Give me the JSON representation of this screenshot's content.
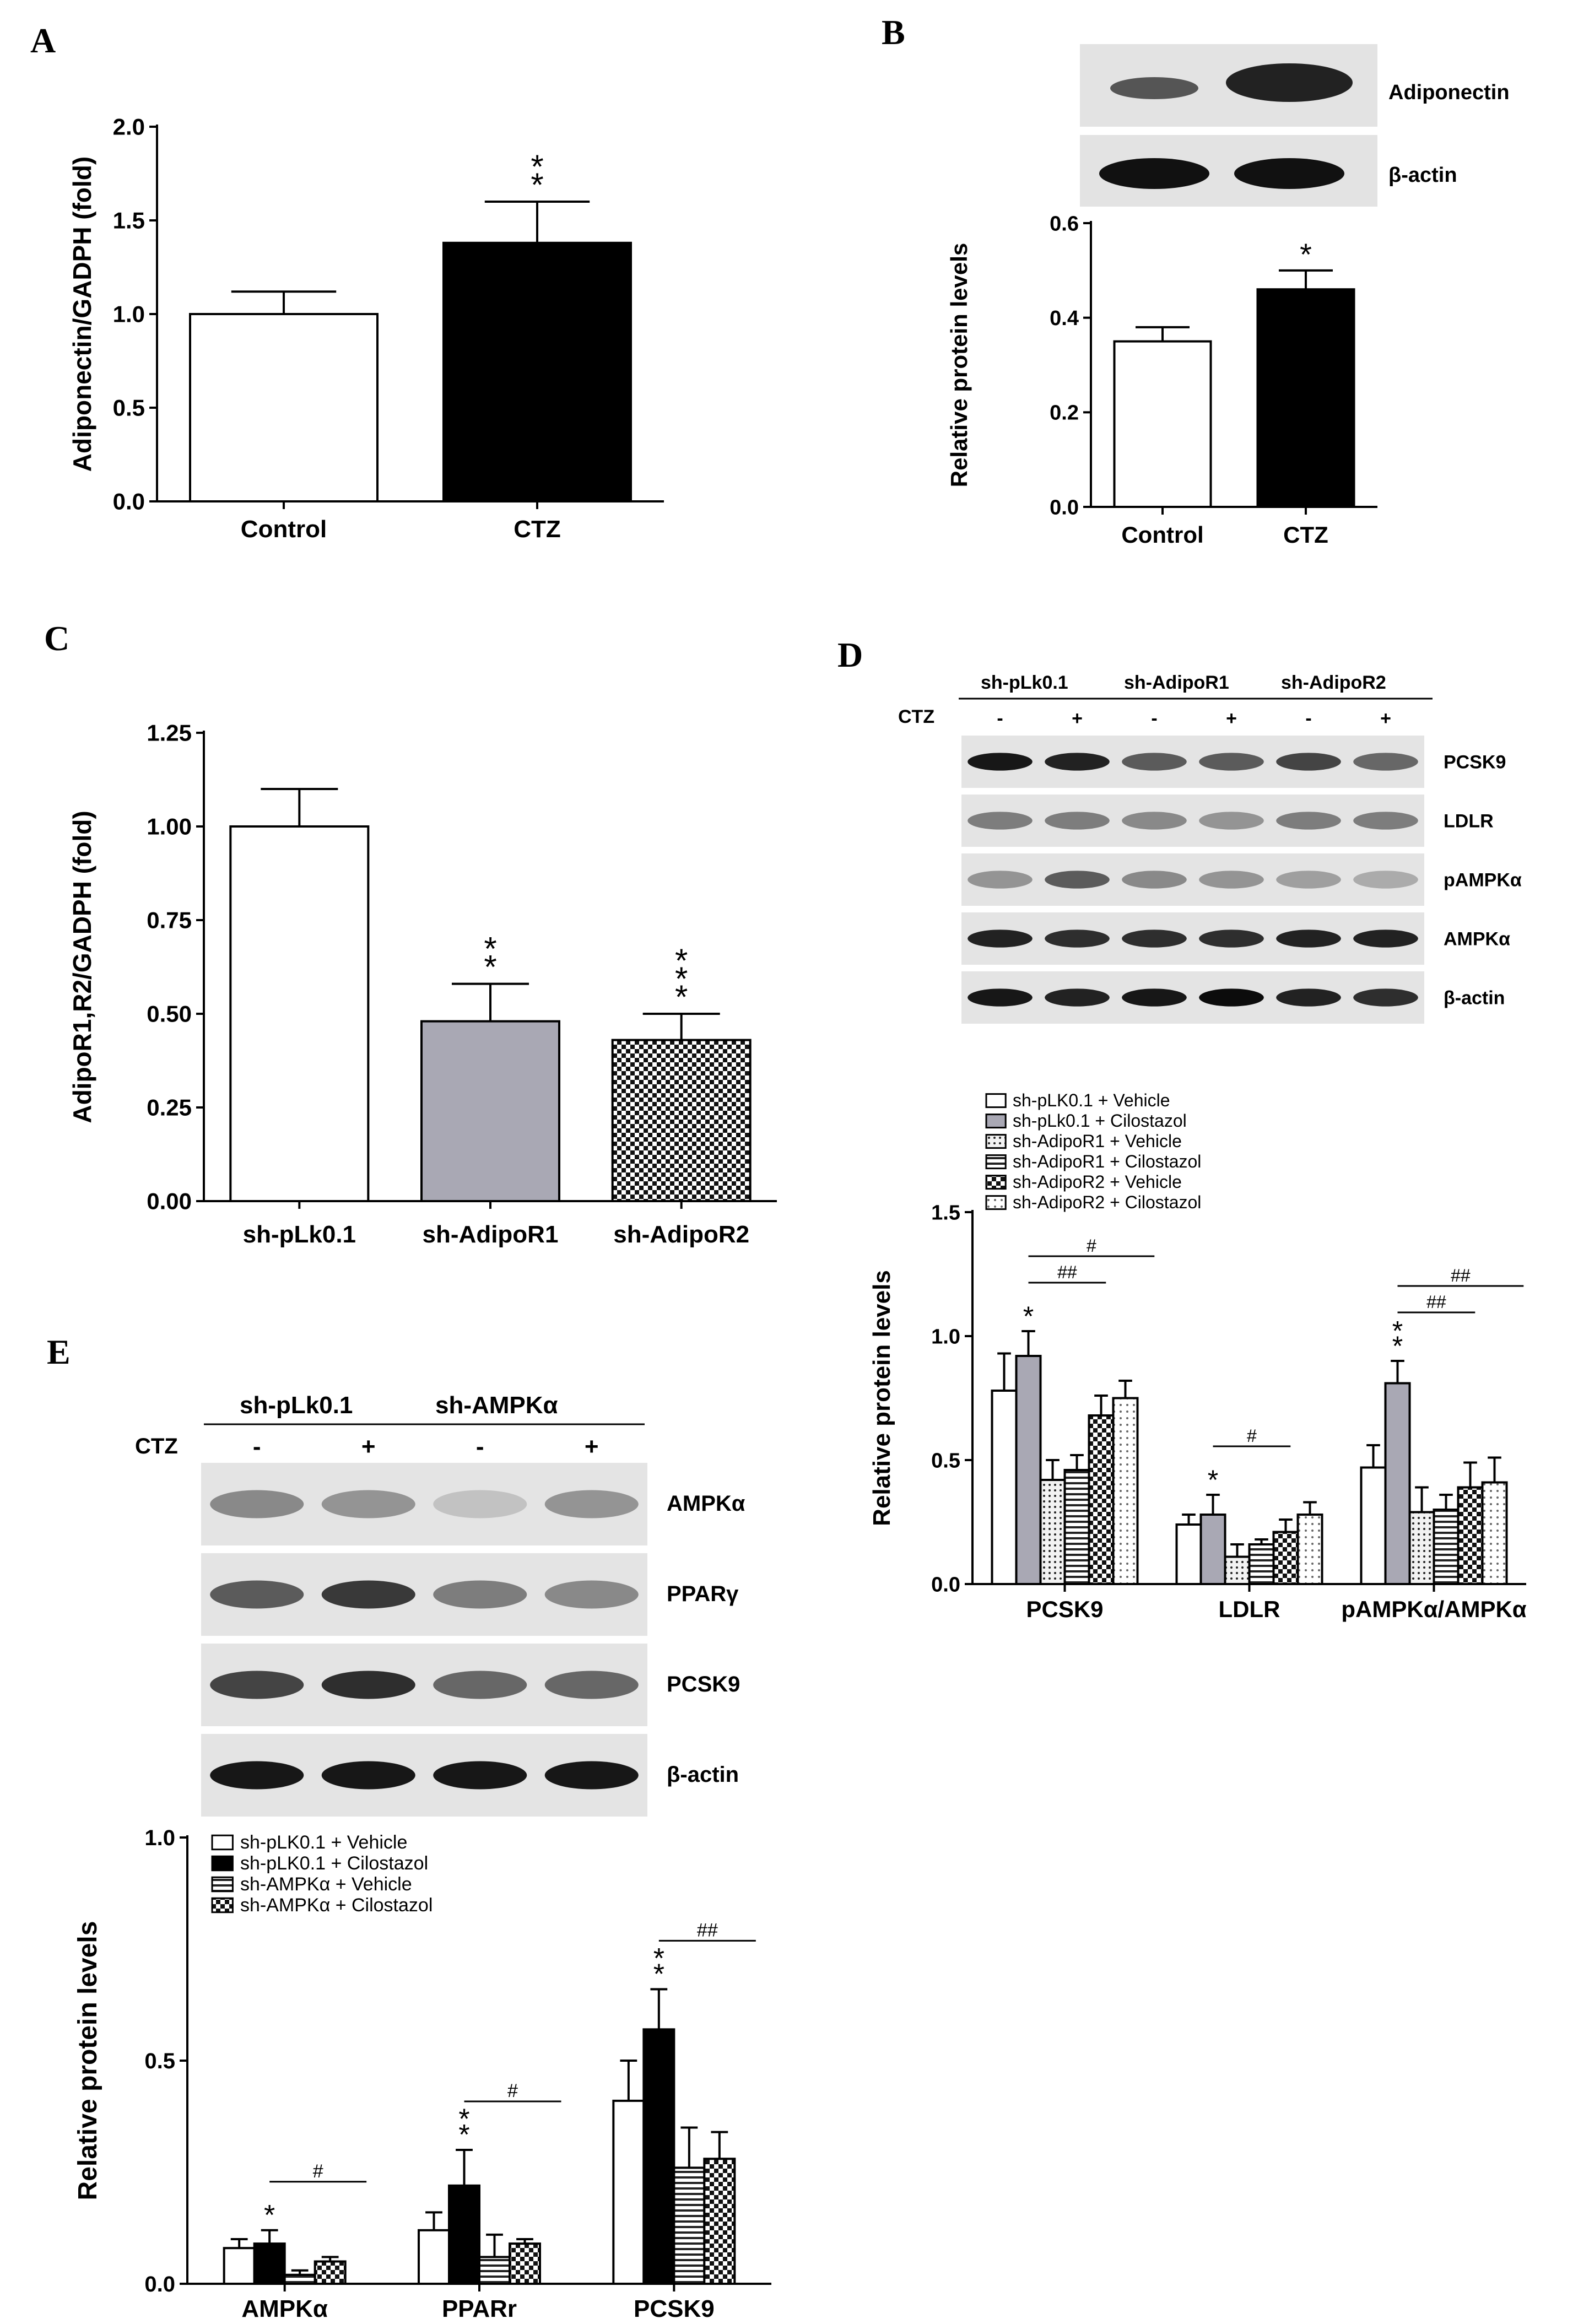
{
  "panels": {
    "A": {
      "label": "A"
    },
    "B": {
      "label": "B",
      "blot_labels": [
        "Adiponectin",
        "β-actin"
      ]
    },
    "C": {
      "label": "C"
    },
    "D": {
      "label": "D",
      "groups": [
        "sh-pLk0.1",
        "sh-AdipoR1",
        "sh-AdipoR2"
      ],
      "ctz_label": "CTZ",
      "lanes": [
        "-",
        "+",
        "-",
        "+",
        "-",
        "+"
      ],
      "blot_labels": [
        "PCSK9",
        "LDLR",
        "pAMPKα",
        "AMPKα",
        "β-actin"
      ]
    },
    "E": {
      "label": "E",
      "groups": [
        "sh-pLk0.1",
        "sh-AMPKα"
      ],
      "ctz_label": "CTZ",
      "lanes": [
        "-",
        "+",
        "-",
        "+"
      ],
      "blot_labels": [
        "AMPKα",
        "PPARγ",
        "PCSK9",
        "β-actin"
      ]
    }
  },
  "colors": {
    "black": "#000000",
    "grey": "#a9a8b4",
    "white": "#ffffff"
  },
  "chart_data": [
    {
      "id": "A",
      "type": "bar",
      "categories": [
        "Control",
        "CTZ"
      ],
      "values": [
        1.0,
        1.38
      ],
      "errors": [
        0.12,
        0.22
      ],
      "fills": [
        "white",
        "black"
      ],
      "significance": [
        "",
        "**"
      ],
      "title": "",
      "xlabel": "",
      "ylabel": "Adiponectin/GADPH (fold)",
      "ylim": [
        0,
        2.0
      ],
      "yticks": [
        "0.0",
        "0.5",
        "1.0",
        "1.5",
        "2.0"
      ],
      "grid": false
    },
    {
      "id": "B",
      "type": "bar",
      "categories": [
        "Control",
        "CTZ"
      ],
      "values": [
        0.35,
        0.46
      ],
      "errors": [
        0.03,
        0.04
      ],
      "fills": [
        "white",
        "black"
      ],
      "significance": [
        "",
        "*"
      ],
      "title": "",
      "xlabel": "",
      "ylabel": "Relative protein levels",
      "ylim": [
        0,
        0.6
      ],
      "yticks": [
        "0.0",
        "0.2",
        "0.4",
        "0.6"
      ],
      "grid": false
    },
    {
      "id": "C",
      "type": "bar",
      "categories": [
        "sh-pLk0.1",
        "sh-AdipoR1",
        "sh-AdipoR2"
      ],
      "values": [
        1.0,
        0.48,
        0.43
      ],
      "errors": [
        0.1,
        0.1,
        0.07
      ],
      "fills": [
        "white",
        "grey",
        "checker"
      ],
      "significance": [
        "",
        "**",
        "***"
      ],
      "title": "",
      "xlabel": "",
      "ylabel": "AdipoR1,R2/GADPH (fold)",
      "ylim": [
        0,
        1.25
      ],
      "yticks": [
        "0.00",
        "0.25",
        "0.50",
        "0.75",
        "1.00",
        "1.25"
      ],
      "grid": false
    },
    {
      "id": "D",
      "type": "bar",
      "categories": [
        "PCSK9",
        "LDLR",
        "pAMPKα/AMPKα"
      ],
      "series": [
        {
          "name": "sh-pLK0.1 + Vehicle",
          "fill": "white",
          "values": [
            0.78,
            0.24,
            0.47
          ],
          "errors": [
            0.15,
            0.04,
            0.09
          ]
        },
        {
          "name": "sh-pLk0.1 + Cilostazol",
          "fill": "grey",
          "values": [
            0.92,
            0.28,
            0.81
          ],
          "errors": [
            0.1,
            0.08,
            0.09
          ]
        },
        {
          "name": "sh-AdipoR1 + Vehicle",
          "fill": "dots",
          "values": [
            0.42,
            0.11,
            0.29
          ],
          "errors": [
            0.08,
            0.05,
            0.1
          ]
        },
        {
          "name": "sh-AdipoR1 + Cilostazol",
          "fill": "hstripes",
          "values": [
            0.46,
            0.16,
            0.3
          ],
          "errors": [
            0.06,
            0.02,
            0.06
          ]
        },
        {
          "name": "sh-AdipoR2 + Vehicle",
          "fill": "checker",
          "values": [
            0.68,
            0.21,
            0.39
          ],
          "errors": [
            0.08,
            0.05,
            0.1
          ]
        },
        {
          "name": "sh-AdipoR2 + Cilostazol",
          "fill": "lightdots",
          "values": [
            0.75,
            0.28,
            0.41
          ],
          "errors": [
            0.07,
            0.05,
            0.1
          ]
        }
      ],
      "significance": [
        {
          "category": 0,
          "series": 1,
          "text": "*"
        },
        {
          "category": 1,
          "series": 1,
          "text": "*"
        },
        {
          "category": 2,
          "series": 1,
          "text": "**"
        }
      ],
      "brackets": [
        {
          "category": 0,
          "from": 1,
          "to": 3,
          "level": 1,
          "text": "##"
        },
        {
          "category": 0,
          "from": 1,
          "to": 5,
          "level": 2,
          "text": "#"
        },
        {
          "category": 1,
          "from": 1,
          "to": 3,
          "level": 1,
          "text": "#"
        },
        {
          "category": 2,
          "from": 1,
          "to": 3,
          "level": 1,
          "text": "##"
        },
        {
          "category": 2,
          "from": 1,
          "to": 5,
          "level": 2,
          "text": "##"
        }
      ],
      "title": "",
      "xlabel": "",
      "ylabel": "Relative protein levels",
      "ylim": [
        0,
        1.5
      ],
      "yticks": [
        "0.0",
        "0.5",
        "1.0",
        "1.5"
      ],
      "legend": "top-left",
      "grid": false
    },
    {
      "id": "E",
      "type": "bar",
      "categories": [
        "AMPKα",
        "PPARr",
        "PCSK9"
      ],
      "series": [
        {
          "name": "sh-pLK0.1 + Vehicle",
          "fill": "white",
          "values": [
            0.08,
            0.12,
            0.41
          ],
          "errors": [
            0.02,
            0.04,
            0.09
          ]
        },
        {
          "name": "sh-pLK0.1 + Cilostazol",
          "fill": "black",
          "values": [
            0.09,
            0.22,
            0.57
          ],
          "errors": [
            0.03,
            0.08,
            0.09
          ]
        },
        {
          "name": "sh-AMPKα + Vehicle",
          "fill": "hstripes",
          "values": [
            0.02,
            0.06,
            0.26
          ],
          "errors": [
            0.01,
            0.05,
            0.09
          ]
        },
        {
          "name": "sh-AMPKα + Cilostazol",
          "fill": "checker",
          "values": [
            0.05,
            0.09,
            0.28
          ],
          "errors": [
            0.01,
            0.01,
            0.06
          ]
        }
      ],
      "significance": [
        {
          "category": 0,
          "series": 1,
          "text": "*"
        },
        {
          "category": 1,
          "series": 1,
          "text": "**"
        },
        {
          "category": 2,
          "series": 1,
          "text": "**"
        }
      ],
      "brackets": [
        {
          "category": 0,
          "from": 1,
          "to": 3,
          "level": 1,
          "text": "#"
        },
        {
          "category": 1,
          "from": 1,
          "to": 3,
          "level": 1,
          "text": "#"
        },
        {
          "category": 2,
          "from": 1,
          "to": 3,
          "level": 1,
          "text": "##"
        }
      ],
      "title": "",
      "xlabel": "",
      "ylabel": "Relative protein levels",
      "ylim": [
        0,
        1.0
      ],
      "yticks": [
        "0.0",
        "0.5",
        "1.0"
      ],
      "legend": "top-left",
      "grid": false
    }
  ]
}
